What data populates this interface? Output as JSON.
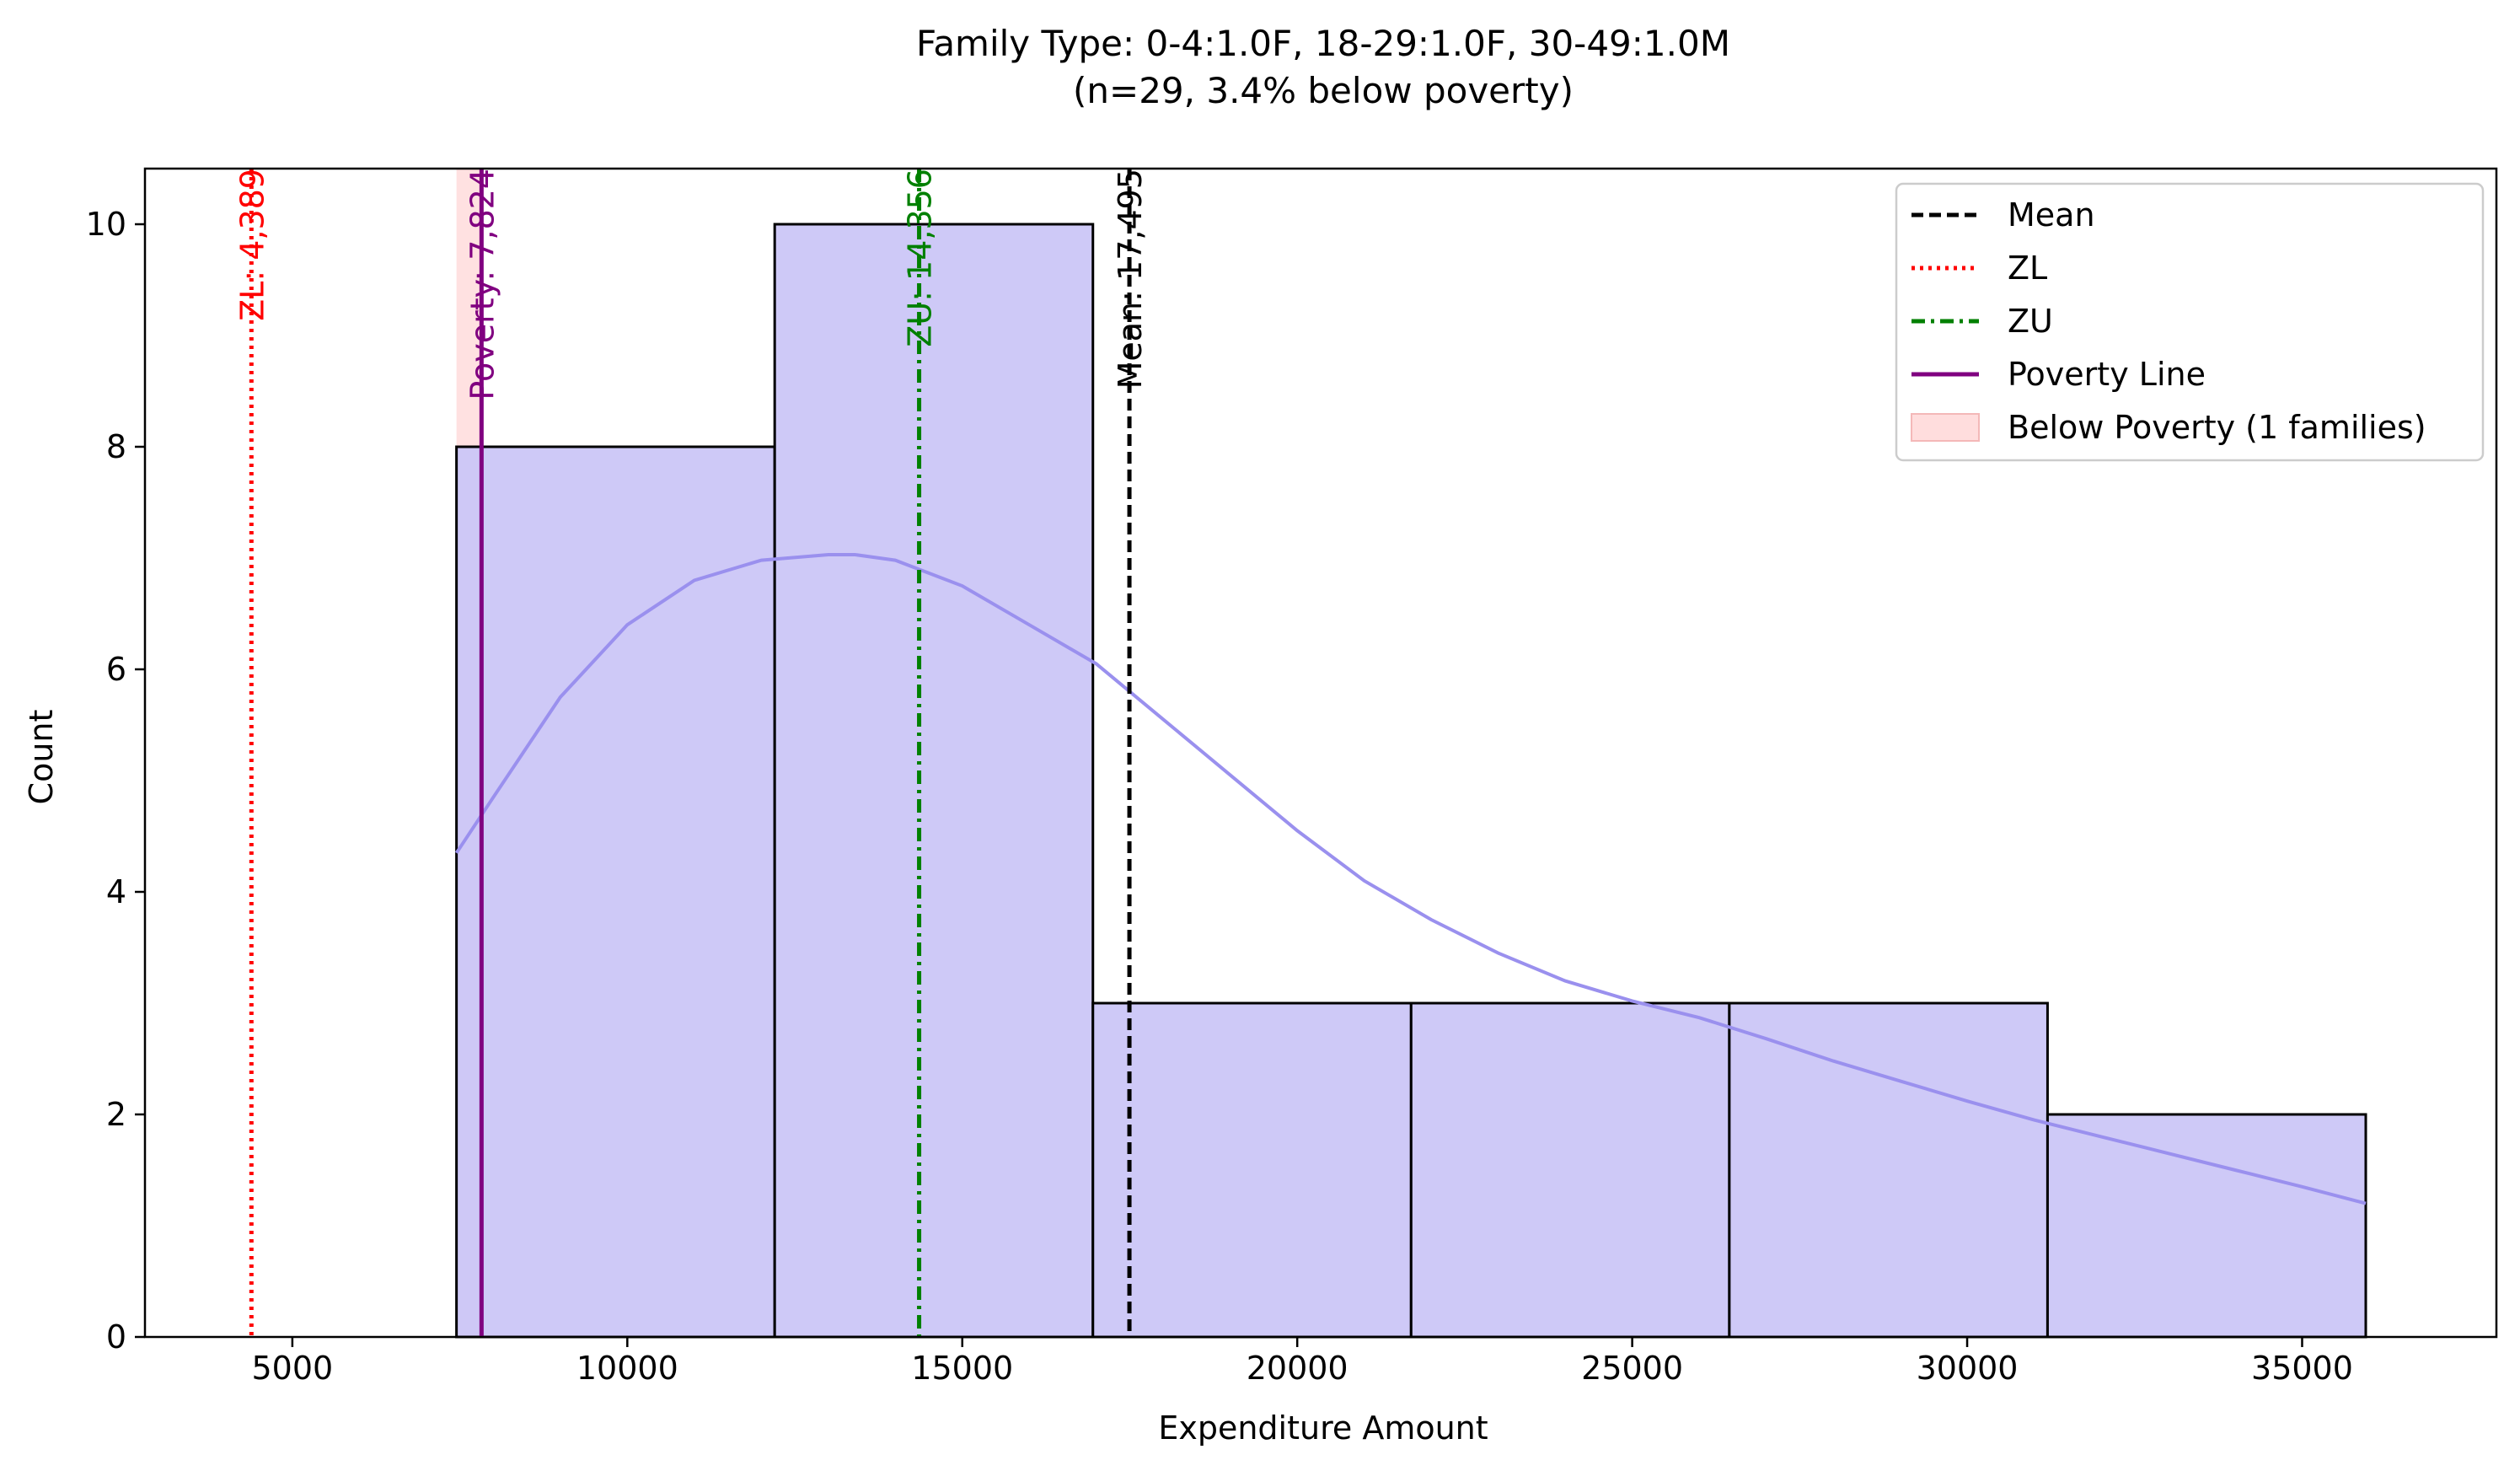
{
  "chart_data": {
    "type": "bar",
    "title_line1": "Family Type: 0-4:1.0F, 18-29:1.0F, 30-49:1.0M",
    "title_line2": "(n=29, 3.4% below poverty)",
    "xlabel": "Expenditure Amount",
    "ylabel": "Count",
    "xlim": [
      2800,
      37900
    ],
    "ylim": [
      0,
      10.5
    ],
    "xticks": [
      5000,
      10000,
      15000,
      20000,
      25000,
      30000,
      35000
    ],
    "xtick_labels": [
      "5000",
      "10000",
      "15000",
      "20000",
      "25000",
      "30000",
      "35000"
    ],
    "yticks": [
      0,
      2,
      4,
      6,
      8,
      10
    ],
    "ytick_labels": [
      "0",
      "2",
      "4",
      "6",
      "8",
      "10"
    ],
    "bins": [
      {
        "x0": 7450,
        "x1": 12200,
        "count": 8
      },
      {
        "x0": 12200,
        "x1": 16950,
        "count": 10
      },
      {
        "x0": 16950,
        "x1": 21700,
        "count": 3
      },
      {
        "x0": 21700,
        "x1": 26450,
        "count": 3
      },
      {
        "x0": 26450,
        "x1": 31200,
        "count": 3
      },
      {
        "x0": 31200,
        "x1": 35950,
        "count": 2
      }
    ],
    "kde": [
      [
        7450,
        4.35
      ],
      [
        8000,
        4.85
      ],
      [
        9000,
        5.75
      ],
      [
        10000,
        6.4
      ],
      [
        11000,
        6.8
      ],
      [
        12000,
        6.98
      ],
      [
        13000,
        7.03
      ],
      [
        13400,
        7.03
      ],
      [
        14000,
        6.98
      ],
      [
        15000,
        6.75
      ],
      [
        16000,
        6.4
      ],
      [
        17000,
        6.05
      ],
      [
        18000,
        5.55
      ],
      [
        19000,
        5.05
      ],
      [
        20000,
        4.55
      ],
      [
        21000,
        4.1
      ],
      [
        22000,
        3.75
      ],
      [
        23000,
        3.45
      ],
      [
        24000,
        3.2
      ],
      [
        25000,
        3.02
      ],
      [
        26000,
        2.87
      ],
      [
        27000,
        2.68
      ],
      [
        28000,
        2.48
      ],
      [
        29000,
        2.3
      ],
      [
        30000,
        2.12
      ],
      [
        31000,
        1.95
      ],
      [
        32000,
        1.8
      ],
      [
        33000,
        1.65
      ],
      [
        34000,
        1.5
      ],
      [
        35000,
        1.35
      ],
      [
        35950,
        1.2
      ]
    ],
    "below_poverty_span": [
      7450,
      7824
    ],
    "lines": [
      {
        "name": "ZL",
        "x": 4389,
        "label": "ZL: 4,389",
        "color": "#ff0000",
        "style": "dotted"
      },
      {
        "name": "Poverty Line",
        "x": 7824,
        "label": "Poverty: 7,824",
        "color": "#800080",
        "style": "solid"
      },
      {
        "name": "ZU",
        "x": 14356,
        "label": "ZU: 14,356",
        "color": "#008000",
        "style": "dashdot"
      },
      {
        "name": "Mean",
        "x": 17495,
        "label": "Mean: 17,495",
        "color": "#000000",
        "style": "dashed"
      }
    ],
    "legend_position": "top-right",
    "legend": [
      {
        "label": "Mean",
        "kind": "dashed",
        "color": "#000000"
      },
      {
        "label": "ZL",
        "kind": "dotted",
        "color": "#ff0000"
      },
      {
        "label": "ZU",
        "kind": "dashdot",
        "color": "#008000"
      },
      {
        "label": "Poverty Line",
        "kind": "solid",
        "color": "#800080"
      },
      {
        "label": "Below Poverty (1 families)",
        "kind": "patch",
        "color": "#ffdddd"
      }
    ],
    "colors": {
      "bar_fill": "#cbc6f7",
      "bar_edge": "#000000",
      "kde": "#9a90ee",
      "poverty_span": "#ffdcdc"
    },
    "grid": false
  }
}
